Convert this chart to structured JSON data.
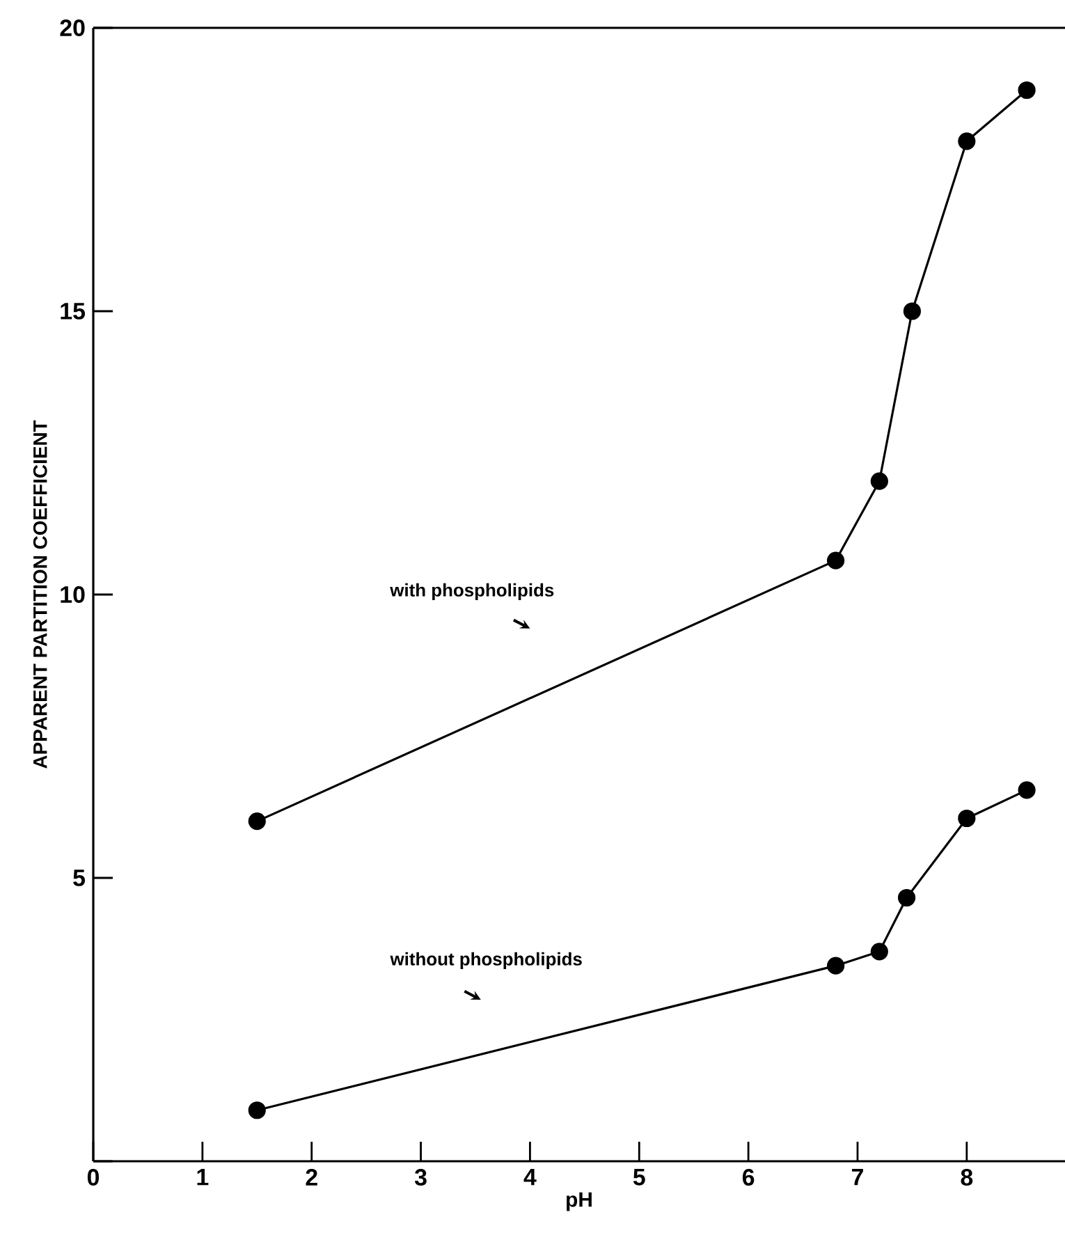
{
  "chart_data": {
    "type": "line",
    "xlabel": "pH",
    "ylabel": "APPARENT PARTITION COEFFICIENT",
    "xlim": [
      0,
      8.9
    ],
    "ylim": [
      0,
      20
    ],
    "xticks": [
      0,
      1,
      2,
      3,
      4,
      5,
      6,
      7,
      8
    ],
    "yticks": [
      {
        "value": 0,
        "label": null
      },
      5,
      10,
      15,
      20
    ],
    "marker": "circle",
    "line_style": "solid",
    "annotations": [
      "with phospholipids",
      "without phospholipids"
    ],
    "series": [
      {
        "color": "#000000",
        "x": [
          1.5,
          6.8,
          7.2,
          7.5,
          8.0,
          8.55
        ],
        "values": [
          6.0,
          10.6,
          12.0,
          15.0,
          18.0,
          18.9
        ]
      },
      {
        "color": "#000000",
        "x": [
          1.5,
          6.8,
          7.2,
          7.45,
          8.0,
          8.55
        ],
        "values": [
          0.9,
          3.45,
          3.7,
          4.65,
          6.05,
          6.55
        ]
      }
    ]
  }
}
